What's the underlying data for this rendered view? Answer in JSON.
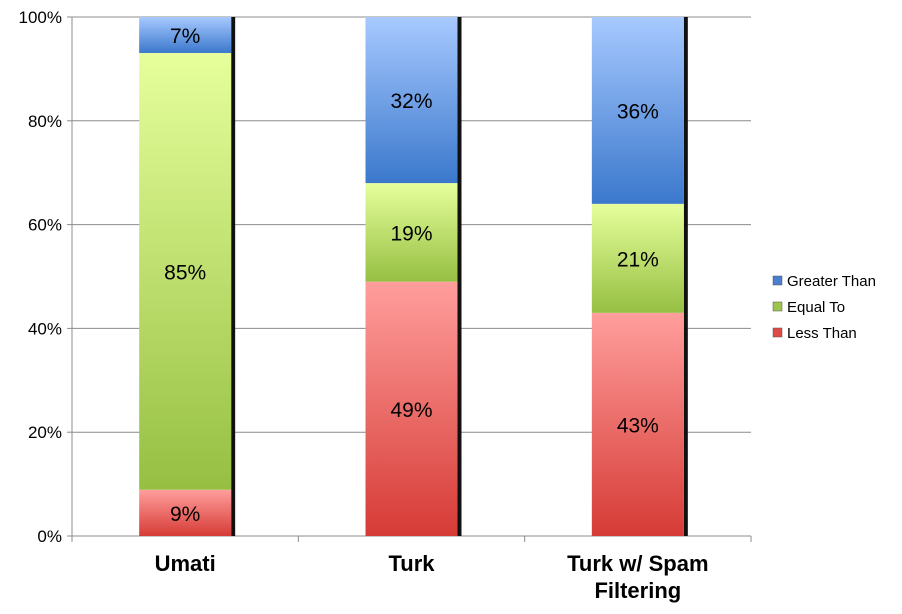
{
  "chart_data": {
    "type": "bar",
    "stacked": true,
    "percent_stacked": true,
    "categories": [
      [
        "Umati"
      ],
      [
        "Turk"
      ],
      [
        "Turk w/ Spam",
        "Filtering"
      ]
    ],
    "series": [
      {
        "name": "Less Than",
        "values": [
          9,
          49,
          43
        ],
        "labels": [
          "9%",
          "49%",
          "43%"
        ],
        "color": "#e04a46"
      },
      {
        "name": "Equal To",
        "values": [
          85,
          19,
          21
        ],
        "labels": [
          "85%",
          "19%",
          "21%"
        ],
        "color": "#9ec54a"
      },
      {
        "name": "Greater Than",
        "values": [
          7,
          32,
          36
        ],
        "labels": [
          "7%",
          "32%",
          "36%"
        ],
        "color": "#4a7fd0"
      }
    ],
    "legend_order": [
      "Greater Than",
      "Equal To",
      "Less Than"
    ],
    "yticks": [
      "0%",
      "20%",
      "40%",
      "60%",
      "80%",
      "100%"
    ],
    "ylim": [
      0,
      100
    ],
    "grid": true,
    "legend": "right"
  }
}
